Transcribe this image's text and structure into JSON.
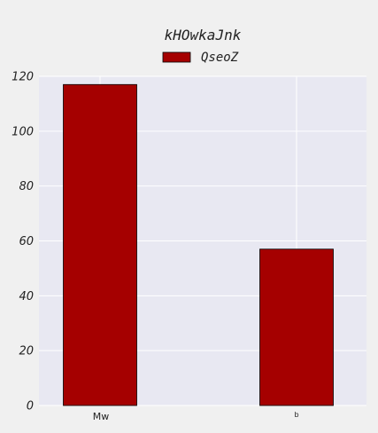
{
  "chart_data": {
    "type": "bar",
    "title": "kHOwkaJnk",
    "categories": [
      "Mw",
      "b"
    ],
    "series": [
      {
        "name": "QseoZ",
        "values": [
          117,
          57
        ],
        "color": "#a50000"
      }
    ],
    "ylim": [
      0,
      120
    ],
    "yticks": [
      0,
      20,
      40,
      60,
      80,
      100,
      120
    ],
    "grid": true,
    "legend_position": "top-center",
    "plot_background": "#e8e8f2",
    "page_background": "#f0f0f0"
  }
}
